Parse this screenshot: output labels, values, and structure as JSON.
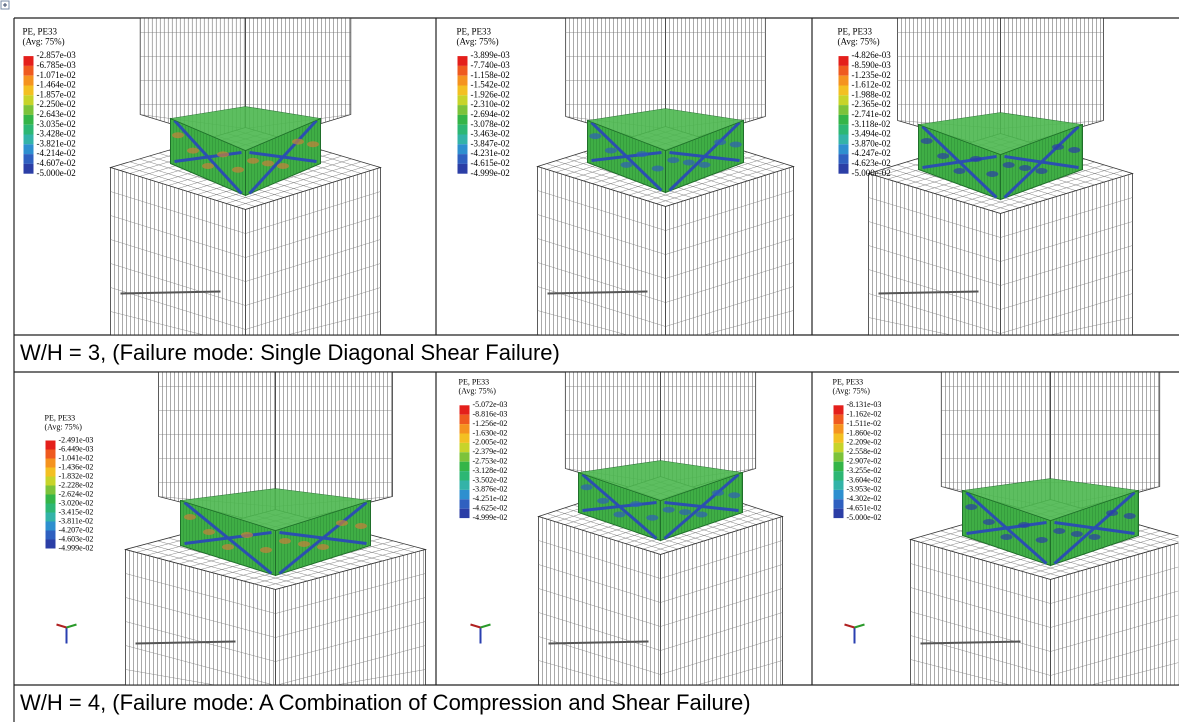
{
  "panels": [
    {
      "legend_title": "PE, PE33",
      "legend_subtitle": "(Avg: 75%)",
      "legend_values": [
        "-2.857e-03",
        "-6.785e-03",
        "-1.071e-02",
        "-1.464e-02",
        "-1.857e-02",
        "-2.250e-02",
        "-2.643e-02",
        "-3.035e-02",
        "-3.428e-02",
        "-3.821e-02",
        "-4.214e-02",
        "-4.607e-02",
        "-5.000e-02"
      ]
    },
    {
      "legend_title": "PE, PE33",
      "legend_subtitle": "(Avg: 75%)",
      "legend_values": [
        "-3.899e-03",
        "-7.740e-03",
        "-1.158e-02",
        "-1.542e-02",
        "-1.926e-02",
        "-2.310e-02",
        "-2.694e-02",
        "-3.078e-02",
        "-3.463e-02",
        "-3.847e-02",
        "-4.231e-02",
        "-4.615e-02",
        "-4.999e-02"
      ]
    },
    {
      "legend_title": "PE, PE33",
      "legend_subtitle": "(Avg: 75%)",
      "legend_values": [
        "-4.826e-03",
        "-8.590e-03",
        "-1.235e-02",
        "-1.612e-02",
        "-1.988e-02",
        "-2.365e-02",
        "-2.741e-02",
        "-3.118e-02",
        "-3.494e-02",
        "-3.870e-02",
        "-4.247e-02",
        "-4.623e-02",
        "-5.000e-02"
      ]
    },
    {
      "legend_title": "PE, PE33",
      "legend_subtitle": "(Avg: 75%)",
      "legend_values": [
        "-2.491e-03",
        "-6.449e-03",
        "-1.041e-02",
        "-1.436e-02",
        "-1.832e-02",
        "-2.228e-02",
        "-2.624e-02",
        "-3.020e-02",
        "-3.415e-02",
        "-3.811e-02",
        "-4.207e-02",
        "-4.603e-02",
        "-4.999e-02"
      ]
    },
    {
      "legend_title": "PE, PE33",
      "legend_subtitle": "(Avg: 75%)",
      "legend_values": [
        "-5.072e-03",
        "-8.816e-03",
        "-1.256e-02",
        "-1.630e-02",
        "-2.005e-02",
        "-2.379e-02",
        "-2.753e-02",
        "-3.128e-02",
        "-3.502e-02",
        "-3.876e-02",
        "-4.251e-02",
        "-4.625e-02",
        "-4.999e-02"
      ]
    },
    {
      "legend_title": "PE, PE33",
      "legend_subtitle": "(Avg: 75%)",
      "legend_values": [
        "-8.131e-03",
        "-1.162e-02",
        "-1.511e-02",
        "-1.860e-02",
        "-2.209e-02",
        "-2.558e-02",
        "-2.907e-02",
        "-3.255e-02",
        "-3.604e-02",
        "-3.953e-02",
        "-4.302e-02",
        "-4.651e-02",
        "-5.000e-02"
      ]
    }
  ],
  "captions": [
    "W/H = 3,  (Failure mode: Single Diagonal Shear Failure)",
    "W/H = 4,  (Failure mode: A Combination of Compression and Shear Failure)"
  ]
}
